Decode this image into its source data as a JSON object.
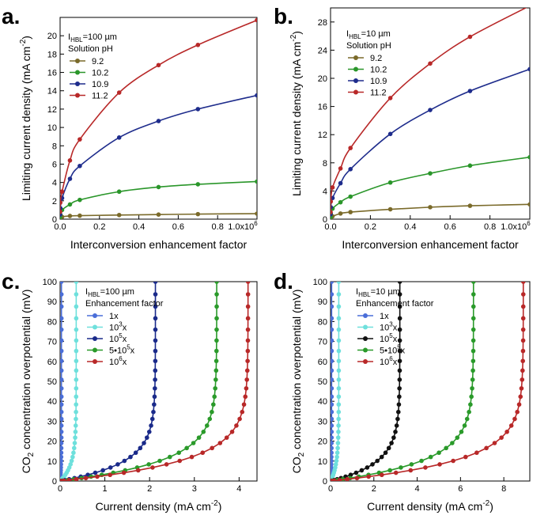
{
  "chart_data": [
    {
      "panel": "a.",
      "type": "line",
      "title": "",
      "xlabel": "Interconversion enhancement factor",
      "ylabel": "Limiting current density (mA cm",
      "ylabel_sup": "-2",
      "ylabel_tail": ")",
      "xlim": [
        0,
        1.0
      ],
      "ylim": [
        0,
        22
      ],
      "xticks": [
        0.0,
        0.2,
        0.4,
        0.6,
        0.8
      ],
      "xtick_labels": [
        "0.0",
        "0.2",
        "0.4",
        "0.6",
        "0.8"
      ],
      "x_end_label": "1.0x10",
      "x_end_sup": "6",
      "yticks": [
        0,
        2,
        4,
        6,
        8,
        10,
        12,
        14,
        16,
        18,
        20
      ],
      "legend": {
        "line1_main": "I",
        "line1_sub": "HBL",
        "line1_rest": "=100 µm",
        "line2": "Solution pH"
      },
      "x": [
        0,
        0.001,
        0.01,
        0.05,
        0.1,
        0.3,
        0.5,
        0.7,
        1.0
      ],
      "series": [
        {
          "name": "9.2",
          "color": "#7a6a2a",
          "values": [
            0.05,
            0.12,
            0.25,
            0.35,
            0.38,
            0.45,
            0.5,
            0.55,
            0.6
          ]
        },
        {
          "name": "10.2",
          "color": "#2a962a",
          "values": [
            0.2,
            0.5,
            1.0,
            1.6,
            2.1,
            3.0,
            3.5,
            3.8,
            4.1
          ]
        },
        {
          "name": "10.9",
          "color": "#1e2c8c",
          "values": [
            0.5,
            1.2,
            2.3,
            4.4,
            5.8,
            8.9,
            10.7,
            12.0,
            13.5
          ]
        },
        {
          "name": "11.2",
          "color": "#b82828",
          "values": [
            0.8,
            1.8,
            3.0,
            6.4,
            8.7,
            13.8,
            16.8,
            19.0,
            21.7
          ]
        }
      ]
    },
    {
      "panel": "b.",
      "type": "line",
      "title": "",
      "xlabel": "Interconversion enhancement factor",
      "ylabel": "Limiting current density (mA cm",
      "ylabel_sup": "-2",
      "ylabel_tail": ")",
      "xlim": [
        0,
        1.0
      ],
      "ylim": [
        0,
        30
      ],
      "xticks": [
        0.0,
        0.2,
        0.4,
        0.6,
        0.8
      ],
      "xtick_labels": [
        "0.0",
        "0.2",
        "0.4",
        "0.6",
        "0.8"
      ],
      "x_end_label": "1.0x10",
      "x_end_sup": "6",
      "yticks": [
        0,
        4,
        8,
        12,
        16,
        20,
        24,
        28
      ],
      "legend": {
        "line1_main": "I",
        "line1_sub": "HBL",
        "line1_rest": "=10 µm",
        "line2": "Solution pH"
      },
      "x": [
        0,
        0.001,
        0.01,
        0.05,
        0.1,
        0.3,
        0.5,
        0.7,
        1.0
      ],
      "series": [
        {
          "name": "9.2",
          "color": "#7a6a2a",
          "values": [
            0.05,
            0.2,
            0.4,
            0.8,
            1.0,
            1.4,
            1.7,
            1.9,
            2.1
          ]
        },
        {
          "name": "10.2",
          "color": "#2a962a",
          "values": [
            0.3,
            0.8,
            1.5,
            2.4,
            3.2,
            5.2,
            6.5,
            7.6,
            8.8
          ]
        },
        {
          "name": "10.9",
          "color": "#1e2c8c",
          "values": [
            0.7,
            1.7,
            3.0,
            5.1,
            7.1,
            12.1,
            15.5,
            18.2,
            21.3
          ]
        },
        {
          "name": "11.2",
          "color": "#b82828",
          "values": [
            1.0,
            2.5,
            4.5,
            7.2,
            10.1,
            17.2,
            22.1,
            25.9,
            30.3
          ]
        }
      ]
    },
    {
      "panel": "c.",
      "type": "line",
      "title": "",
      "xlabel": "Current density (mA cm",
      "xlabel_sup": "-2",
      "xlabel_tail": ")",
      "ylabel_pre": "CO",
      "ylabel_sub": "2",
      "ylabel": " concentration overpotential (mV)",
      "xlim": [
        0,
        4.4
      ],
      "ylim": [
        0,
        100
      ],
      "xticks": [
        0,
        1,
        2,
        3,
        4
      ],
      "xtick_labels": [
        "0",
        "1",
        "2",
        "3",
        "4"
      ],
      "yticks": [
        0,
        10,
        20,
        30,
        40,
        50,
        60,
        70,
        80,
        90,
        100
      ],
      "legend": {
        "line1_main": "I",
        "line1_sub": "HBL",
        "line1_rest": "=100 µm",
        "line2": "Enhancement factor"
      },
      "series": [
        {
          "name": "1x",
          "base": "1x",
          "sup": "",
          "tail": "",
          "color": "#4a6ed8",
          "jlim": 0.03,
          "k": 8
        },
        {
          "name": "10^3x",
          "base": "10",
          "sup": "3",
          "tail": "x",
          "color": "#6ee0dc",
          "jlim": 0.36,
          "k": 8
        },
        {
          "name": "10^5x",
          "base": "10",
          "sup": "5",
          "tail": "x",
          "color": "#1a2a8a",
          "jlim": 2.13,
          "k": 9
        },
        {
          "name": "5•10^5x",
          "base": "5•10",
          "sup": "5",
          "tail": "x",
          "color": "#2a9a2a",
          "jlim": 3.5,
          "k": 10
        },
        {
          "name": "10^6x",
          "base": "10",
          "sup": "6",
          "tail": "x",
          "color": "#b82828",
          "jlim": 4.2,
          "k": 10
        }
      ]
    },
    {
      "panel": "d.",
      "type": "line",
      "title": "",
      "xlabel": "Current density (mA cm",
      "xlabel_sup": "-2",
      "xlabel_tail": ")",
      "ylabel_pre": "CO",
      "ylabel_sub": "2",
      "ylabel": " concentration overpotential (mV)",
      "xlim": [
        0,
        9.2
      ],
      "ylim": [
        0,
        100
      ],
      "xticks": [
        0,
        2,
        4,
        6,
        8
      ],
      "xtick_labels": [
        "0",
        "2",
        "4",
        "6",
        "8"
      ],
      "yticks": [
        0,
        10,
        20,
        30,
        40,
        50,
        60,
        70,
        80,
        90,
        100
      ],
      "legend": {
        "line1_main": "I",
        "line1_sub": "HBL",
        "line1_rest": "=10 µm",
        "line2": "Enhancement factor"
      },
      "series": [
        {
          "name": "1x",
          "base": "1x",
          "sup": "",
          "tail": "",
          "color": "#4a6ed8",
          "jlim": 0.05,
          "k": 8
        },
        {
          "name": "10^3x",
          "base": "10",
          "sup": "3",
          "tail": "x",
          "color": "#6ee0dc",
          "jlim": 0.38,
          "k": 8
        },
        {
          "name": "10^5x",
          "base": "10",
          "sup": "5",
          "tail": "x",
          "color": "#111111",
          "jlim": 3.2,
          "k": 9
        },
        {
          "name": "5•10^5x",
          "base": "5•10",
          "sup": "5",
          "tail": "x",
          "color": "#2a9a2a",
          "jlim": 6.6,
          "k": 10
        },
        {
          "name": "10^6x",
          "base": "10",
          "sup": "6",
          "tail": "x",
          "color": "#b82828",
          "jlim": 8.9,
          "k": 10
        }
      ]
    }
  ]
}
